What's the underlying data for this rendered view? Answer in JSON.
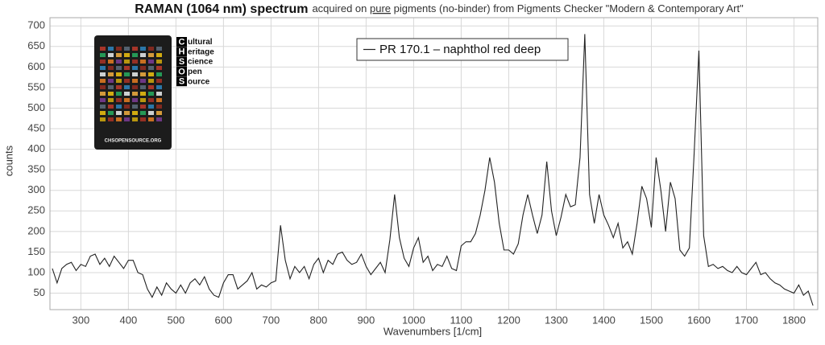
{
  "chart_data": {
    "type": "line",
    "title": "RAMAN (1064 nm) spectrum",
    "subtitle": [
      "acquired on ",
      "pure",
      " pigments (no-binder) from Pigments Checker \"Modern & Contemporary Art\""
    ],
    "x_label": "Wavenumbers [1/cm]",
    "y_label": "counts",
    "x": [
      240,
      250,
      260,
      270,
      280,
      290,
      300,
      310,
      320,
      330,
      340,
      350,
      360,
      370,
      380,
      390,
      400,
      410,
      420,
      430,
      440,
      450,
      460,
      470,
      480,
      490,
      500,
      510,
      520,
      530,
      540,
      550,
      560,
      570,
      580,
      590,
      600,
      610,
      620,
      630,
      640,
      650,
      660,
      670,
      680,
      690,
      700,
      710,
      720,
      730,
      740,
      750,
      760,
      770,
      780,
      790,
      800,
      810,
      820,
      830,
      840,
      850,
      860,
      870,
      880,
      890,
      900,
      910,
      920,
      930,
      940,
      950,
      960,
      970,
      980,
      990,
      1000,
      1010,
      1020,
      1030,
      1040,
      1050,
      1060,
      1070,
      1080,
      1090,
      1100,
      1110,
      1120,
      1130,
      1140,
      1150,
      1160,
      1170,
      1180,
      1190,
      1200,
      1210,
      1220,
      1230,
      1240,
      1250,
      1260,
      1270,
      1280,
      1290,
      1300,
      1310,
      1320,
      1330,
      1340,
      1350,
      1360,
      1370,
      1380,
      1390,
      1400,
      1410,
      1420,
      1430,
      1440,
      1450,
      1460,
      1470,
      1480,
      1490,
      1500,
      1510,
      1520,
      1530,
      1540,
      1550,
      1560,
      1570,
      1580,
      1590,
      1600,
      1610,
      1620,
      1630,
      1640,
      1650,
      1660,
      1670,
      1680,
      1690,
      1700,
      1710,
      1720,
      1730,
      1740,
      1750,
      1760,
      1770,
      1780,
      1790,
      1800,
      1810,
      1820,
      1830,
      1840
    ],
    "series": [
      {
        "name": "PR 170.1 – naphthol red deep",
        "color": "#222222",
        "values": [
          110,
          75,
          110,
          120,
          125,
          105,
          120,
          115,
          140,
          145,
          120,
          135,
          115,
          140,
          125,
          110,
          130,
          130,
          100,
          95,
          60,
          40,
          65,
          45,
          75,
          60,
          50,
          70,
          50,
          75,
          85,
          70,
          90,
          60,
          45,
          40,
          75,
          95,
          95,
          60,
          70,
          80,
          100,
          60,
          70,
          65,
          75,
          80,
          215,
          130,
          85,
          115,
          100,
          115,
          85,
          120,
          135,
          100,
          130,
          120,
          145,
          150,
          130,
          120,
          125,
          145,
          115,
          95,
          110,
          125,
          100,
          180,
          290,
          185,
          135,
          115,
          160,
          185,
          125,
          140,
          105,
          120,
          115,
          140,
          110,
          105,
          165,
          175,
          175,
          195,
          240,
          300,
          380,
          320,
          220,
          155,
          155,
          145,
          170,
          240,
          290,
          240,
          195,
          240,
          370,
          250,
          190,
          235,
          290,
          260,
          265,
          380,
          680,
          290,
          220,
          290,
          240,
          215,
          185,
          220,
          160,
          175,
          145,
          220,
          310,
          280,
          210,
          380,
          300,
          200,
          320,
          280,
          155,
          140,
          160,
          390,
          640,
          190,
          115,
          120,
          110,
          115,
          105,
          100,
          115,
          100,
          95,
          110,
          125,
          95,
          100,
          85,
          75,
          70,
          60,
          55,
          50,
          70,
          45,
          55,
          20
        ]
      }
    ],
    "xlim": [
      235,
      1850
    ],
    "ylim": [
      10,
      720
    ],
    "xticks": [
      300,
      400,
      500,
      600,
      700,
      800,
      900,
      1000,
      1100,
      1200,
      1300,
      1400,
      1500,
      1600,
      1700,
      1800
    ],
    "yticks": [
      50,
      100,
      150,
      200,
      250,
      300,
      350,
      400,
      450,
      500,
      550,
      600,
      650,
      700
    ],
    "grid": true
  },
  "logo": {
    "letters": [
      "C",
      "H",
      "S",
      "O",
      "S"
    ],
    "words": [
      "ultural",
      "eritage",
      "cience",
      "pen",
      "ource"
    ],
    "url": "CHSOPENSOURCE.ORG"
  }
}
